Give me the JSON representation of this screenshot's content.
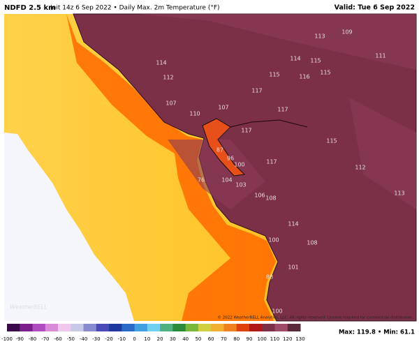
{
  "header": {
    "model": "NDFD 2.5 km",
    "description": "Init 14z 6 Sep 2022 • Daily Max. 2m Temperature (°F)",
    "valid": "Valid: Tue 6 Sep 2022"
  },
  "map": {
    "labels": [
      113,
      109,
      114,
      114,
      115,
      111,
      112,
      115,
      116,
      115,
      117,
      107,
      107,
      110,
      117,
      117,
      115,
      87,
      96,
      100,
      117,
      112,
      104,
      103,
      106,
      108,
      76,
      113,
      114,
      100,
      108,
      101,
      88,
      100
    ]
  },
  "logo": "WeatherBELL",
  "copyright": "© 2022 WeatherBELL Analytics, LLC. All rights reserved. License required for commercial distribution.",
  "colorbar": {
    "ticks": [
      -100,
      -90,
      -80,
      -70,
      -60,
      -50,
      -40,
      -30,
      -20,
      -10,
      0,
      10,
      20,
      30,
      40,
      50,
      60,
      70,
      80,
      90,
      100,
      110,
      120,
      130
    ]
  },
  "stats": "Max: 119.8 • Min: 61.1"
}
